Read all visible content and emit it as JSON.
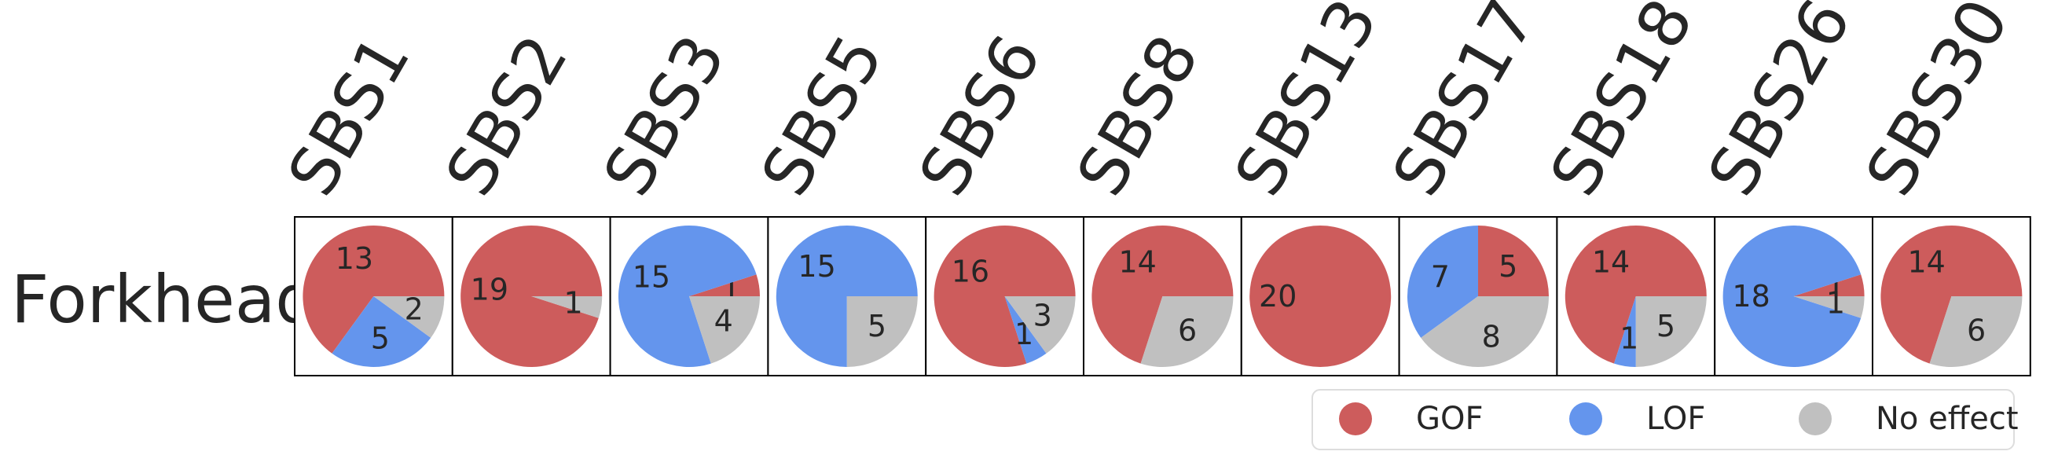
{
  "chart_data": {
    "type": "pie",
    "row_label": "Forkhead",
    "categories": [
      "SBS1",
      "SBS2",
      "SBS3",
      "SBS5",
      "SBS6",
      "SBS8",
      "SBS13",
      "SBS17",
      "SBS18",
      "SBS26",
      "SBS30"
    ],
    "series": [
      {
        "name": "GOF",
        "color": "#cd5c5c",
        "values": [
          13,
          19,
          1,
          0,
          16,
          14,
          20,
          5,
          14,
          1,
          14
        ]
      },
      {
        "name": "LOF",
        "color": "#6495ed",
        "values": [
          5,
          0,
          15,
          15,
          1,
          0,
          0,
          7,
          1,
          18,
          0
        ]
      },
      {
        "name": "No effect",
        "color": "#c0c0c0",
        "values": [
          2,
          1,
          4,
          5,
          3,
          6,
          0,
          8,
          5,
          1,
          6
        ]
      }
    ],
    "legend": {
      "position": "bottom-right",
      "items": [
        "GOF",
        "LOF",
        "No effect"
      ]
    }
  }
}
